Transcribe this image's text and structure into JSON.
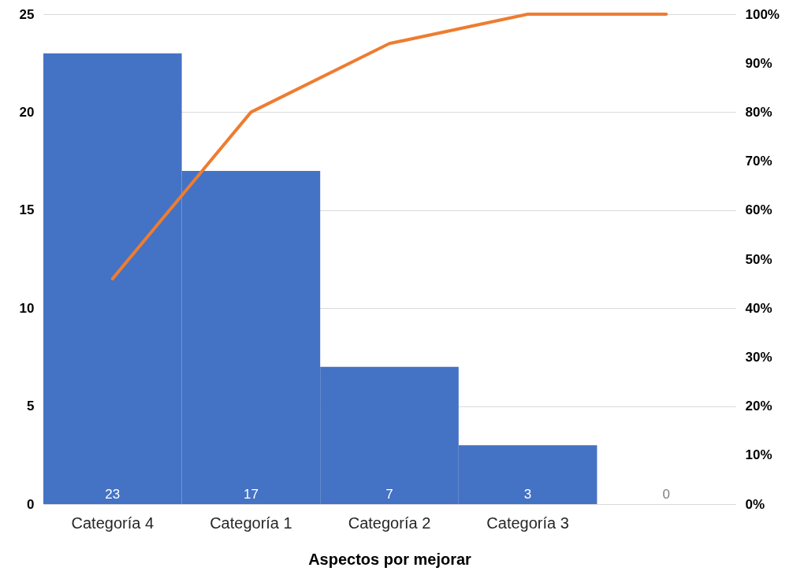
{
  "chart_data": {
    "type": "bar",
    "xlabel": "Aspectos por mejorar",
    "categories": [
      "Categoría 4",
      "Categoría 1",
      "Categoría 2",
      "Categoría 3",
      null
    ],
    "series": [
      {
        "color": "#4472c4",
        "values": [
          23,
          17,
          7,
          3,
          0
        ],
        "value_labels": [
          "23",
          "17",
          "7",
          "3",
          "0"
        ]
      },
      {
        "type": "line",
        "axis": "y2",
        "color": "#ed7d31",
        "values": [
          46,
          80,
          94,
          100,
          100
        ]
      }
    ],
    "ylim": [
      0,
      25
    ],
    "yticks": [
      0,
      5,
      10,
      15,
      20,
      25
    ],
    "y2lim": [
      0,
      100
    ],
    "y2ticks": [
      {
        "value": 0,
        "label": "0%"
      },
      {
        "value": 10,
        "label": "10%"
      },
      {
        "value": 20,
        "label": "20%"
      },
      {
        "value": 30,
        "label": "30%"
      },
      {
        "value": 40,
        "label": "40%"
      },
      {
        "value": 50,
        "label": "50%"
      },
      {
        "value": 60,
        "label": "60%"
      },
      {
        "value": 70,
        "label": "70%"
      },
      {
        "value": 80,
        "label": "80%"
      },
      {
        "value": 90,
        "label": "90%"
      },
      {
        "value": 100,
        "label": "100%"
      }
    ],
    "grid": "y"
  }
}
